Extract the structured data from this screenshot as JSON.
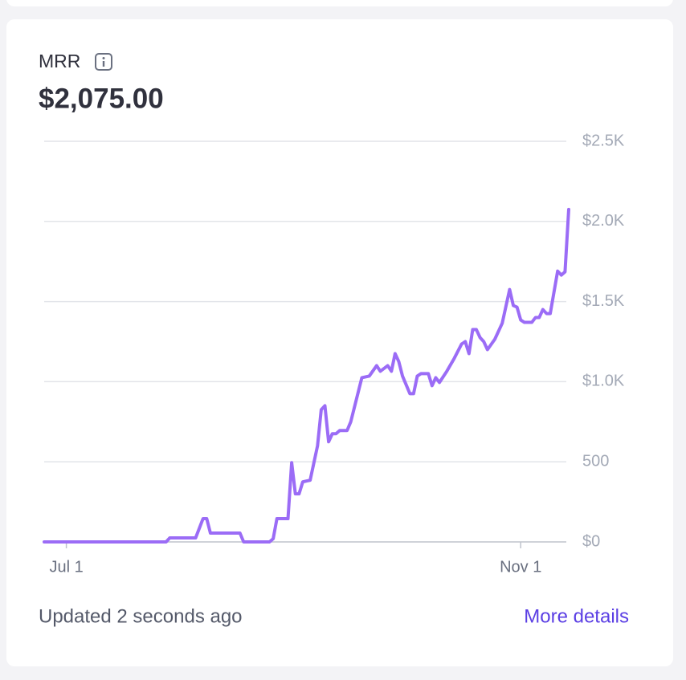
{
  "title": "MRR",
  "value": "$2,075.00",
  "footer": {
    "updated": "Updated 2 seconds ago",
    "link": "More details"
  },
  "chart_data": {
    "type": "line",
    "x": [
      "Jun 25",
      "Jul 28",
      "Jul 29",
      "Aug 5",
      "Aug 7",
      "Aug 8",
      "Aug 9",
      "Aug 17",
      "Aug 18",
      "Aug 25",
      "Aug 26",
      "Aug 27",
      "Aug 30",
      "Aug 31",
      "Sep 1",
      "Sep 2",
      "Sep 3",
      "Sep 5",
      "Sep 7",
      "Sep 8",
      "Sep 9",
      "Sep 10",
      "Sep 11",
      "Sep 12",
      "Sep 13",
      "Sep 15",
      "Sep 16",
      "Sep 19",
      "Sep 21",
      "Sep 23",
      "Sep 24",
      "Sep 26",
      "Sep 27",
      "Sep 28",
      "Sep 29",
      "Sep 30",
      "Oct 2",
      "Oct 3",
      "Oct 4",
      "Oct 5",
      "Oct 7",
      "Oct 8",
      "Oct 9",
      "Oct 10",
      "Oct 12",
      "Oct 14",
      "Oct 16",
      "Oct 17",
      "Oct 18",
      "Oct 19",
      "Oct 20",
      "Oct 21",
      "Oct 22",
      "Oct 23",
      "Oct 25",
      "Oct 27",
      "Oct 29",
      "Oct 30",
      "Oct 31",
      "Nov 1",
      "Nov 2",
      "Nov 4",
      "Nov 5",
      "Nov 6",
      "Nov 7",
      "Nov 8",
      "Nov 9",
      "Nov 11",
      "Nov 12",
      "Nov 13",
      "Nov 14"
    ],
    "series": [
      {
        "name": "MRR",
        "color": "#9b6cf6",
        "values": [
          0,
          0,
          25,
          25,
          145,
          145,
          55,
          55,
          0,
          0,
          20,
          145,
          145,
          495,
          300,
          300,
          375,
          385,
          600,
          825,
          850,
          625,
          675,
          675,
          695,
          695,
          750,
          1025,
          1035,
          1100,
          1065,
          1100,
          1065,
          1175,
          1125,
          1035,
          925,
          925,
          1035,
          1050,
          1050,
          975,
          1025,
          995,
          1065,
          1145,
          1235,
          1250,
          1175,
          1325,
          1325,
          1275,
          1250,
          1200,
          1265,
          1365,
          1575,
          1475,
          1465,
          1385,
          1370,
          1370,
          1400,
          1400,
          1450,
          1425,
          1425,
          1690,
          1665,
          1685,
          2075
        ]
      }
    ],
    "xlim": [
      "Jun 25",
      "Nov 14"
    ],
    "xticks": [
      "Jul 1",
      "Nov 1"
    ],
    "ylim": [
      0,
      2500
    ],
    "yticks": [
      {
        "value": 0,
        "label": "$0"
      },
      500,
      {
        "value": 1000,
        "label": "$1.0K"
      },
      {
        "value": 1500,
        "label": "$1.5K"
      },
      {
        "value": 2000,
        "label": "$2.0K"
      },
      {
        "value": 2500,
        "label": "$2.5K"
      }
    ],
    "grid": true
  }
}
